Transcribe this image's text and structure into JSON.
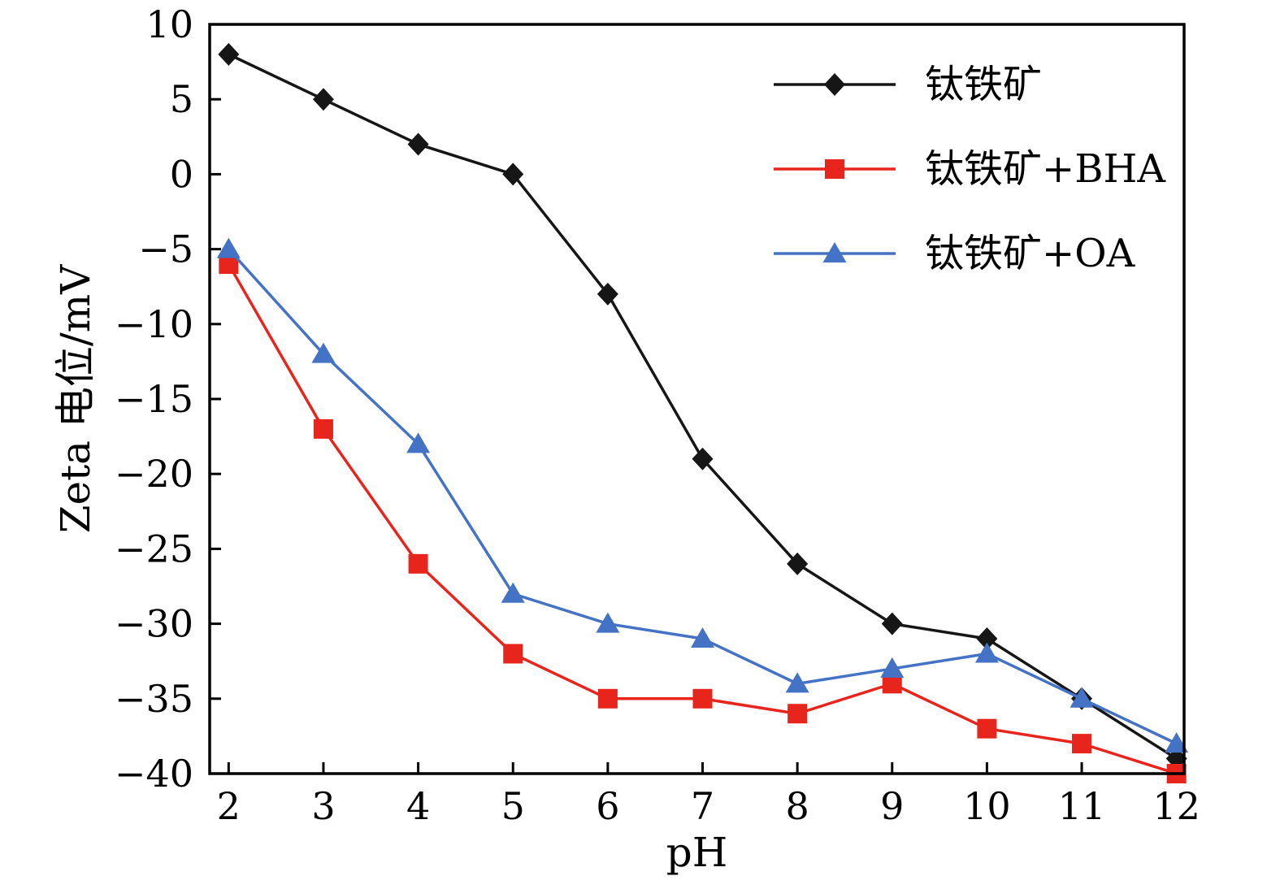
{
  "chart_data": {
    "type": "line",
    "x": [
      2,
      3,
      4,
      5,
      6,
      7,
      8,
      9,
      10,
      11,
      12
    ],
    "series": [
      {
        "name": "钛铁矿",
        "color": "#161616",
        "marker": "diamond",
        "values": [
          8,
          5,
          2,
          0,
          -8,
          -19,
          -26,
          -30,
          -31,
          -35,
          -39
        ]
      },
      {
        "name": "钛铁矿+BHA",
        "color": "#e8251d",
        "marker": "square",
        "values": [
          -6,
          -17,
          -26,
          -32,
          -35,
          -35,
          -36,
          -34,
          -37,
          -38,
          -40
        ]
      },
      {
        "name": "钛铁矿+OA",
        "color": "#4472c4",
        "marker": "triangle",
        "values": [
          -5,
          -12,
          -18,
          -28,
          -30,
          -31,
          -34,
          -33,
          -32,
          -35,
          -38
        ]
      }
    ],
    "xlabel": "pH",
    "ylabel": "Zeta 电位/mV",
    "xlim": [
      2,
      12
    ],
    "ylim": [
      -40,
      10
    ],
    "xticks": [
      2,
      3,
      4,
      5,
      6,
      7,
      8,
      9,
      10,
      11,
      12
    ],
    "yticks": [
      10,
      5,
      0,
      -5,
      -10,
      -15,
      -20,
      -25,
      -30,
      -35,
      -40
    ],
    "grid": false,
    "legend_position": "upper-right",
    "frame_color": "#000000",
    "background": "#ffffff"
  }
}
